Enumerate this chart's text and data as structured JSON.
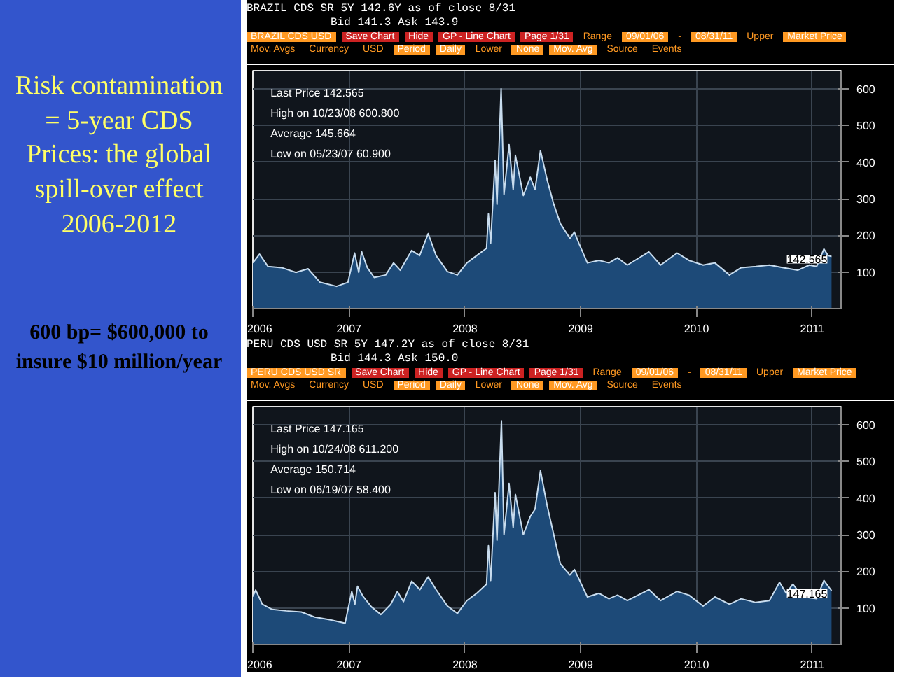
{
  "chart_data": [
    {
      "type": "other",
      "title": "Risk contamination = 5-year CDS Prices: the global spill-over effect 2006-2012",
      "annotations": [
        "600 bp= $600,000 to insure $10 million/year"
      ]
    },
    {
      "type": "area",
      "title": "BRAZIL CDS SR 5Y    142.6Y as of close  8/31",
      "subtitle": "Bid 141.3  Ask 143.9",
      "annotations": [
        "Last Price 142.565",
        "High on 10/23/08 600.800",
        "Average 145.664",
        "Low on 05/23/07 60.900",
        {
          "text": "142.565",
          "x": "2011-08-31",
          "y": 142.565
        },
        "BRAZIL CDS USD",
        "Save Chart",
        "Hide",
        "GP - Line Chart",
        "Page 1/31",
        "Range",
        "09/01/06",
        "-",
        "08/31/11",
        "Upper",
        "Market Price",
        "Mov. Avgs",
        "Currency",
        "USD",
        "Period",
        "Daily",
        "Lower",
        "None",
        "Mov. Avg",
        "Source",
        "Events"
      ],
      "x": [
        "2006-09-01",
        "2006-09-22",
        "2006-10-19",
        "2006-12-01",
        "2007-01-15",
        "2007-02-22",
        "2007-04-01",
        "2007-05-23",
        "2007-06-28",
        "2007-07-19",
        "2007-08-01",
        "2007-08-10",
        "2007-08-28",
        "2007-09-19",
        "2007-10-25",
        "2007-11-19",
        "2007-12-10",
        "2008-01-15",
        "2008-02-09",
        "2008-03-07",
        "2008-04-01",
        "2008-05-07",
        "2008-06-07",
        "2008-07-07",
        "2008-08-07",
        "2008-09-07",
        "2008-09-13",
        "2008-09-20",
        "2008-10-04",
        "2008-10-10",
        "2008-10-23",
        "2008-11-01",
        "2008-11-17",
        "2008-11-30",
        "2008-12-07",
        "2009-01-01",
        "2009-01-23",
        "2009-02-07",
        "2009-02-24",
        "2009-03-17",
        "2009-04-07",
        "2009-04-28",
        "2009-05-28",
        "2009-06-11",
        "2009-06-25",
        "2009-07-22",
        "2009-08-28",
        "2009-09-28",
        "2009-10-25",
        "2009-11-25",
        "2010-02-01",
        "2010-03-10",
        "2010-05-01",
        "2010-06-07",
        "2010-07-22",
        "2010-08-28",
        "2010-10-13",
        "2010-11-19",
        "2011-01-04",
        "2011-02-16",
        "2011-04-01",
        "2011-05-16",
        "2011-06-22",
        "2011-07-15",
        "2011-08-07",
        "2011-08-20",
        "2011-08-31"
      ],
      "series": [
        {
          "color": "#1d4a78",
          "values": [
            125,
            149,
            115,
            112,
            99,
            109,
            72,
            60.9,
            72,
            152,
            99,
            156,
            112,
            85,
            92,
            125,
            105,
            159,
            145,
            205,
            145,
            101,
            92,
            125,
            145,
            165,
            259,
            179,
            405,
            285,
            600.8,
            312,
            448,
            325,
            419,
            309,
            359,
            325,
            432,
            352,
            285,
            232,
            192,
            209,
            179,
            125,
            132,
            125,
            139,
            119,
            155,
            119,
            152,
            132,
            119,
            125,
            92,
            112,
            115,
            119,
            112,
            105,
            119,
            115,
            163,
            145,
            142.565
          ]
        }
      ],
      "xlim": [
        "2006-09-01",
        "2011-09-30"
      ],
      "xticks": [
        {
          "value": "2006-09-01",
          "label": "2006"
        },
        {
          "value": "2007-07-01",
          "label": "2007"
        },
        {
          "value": "2008-07-01",
          "label": "2008"
        },
        {
          "value": "2009-07-01",
          "label": "2009"
        },
        {
          "value": "2010-07-01",
          "label": "2010"
        },
        {
          "value": "2011-07-01",
          "label": "2011"
        }
      ],
      "ylim": [
        0,
        650
      ],
      "yticks": [
        100,
        200,
        300,
        400,
        500,
        600
      ],
      "grid": true
    },
    {
      "type": "area",
      "title": "PERU CDS USD SR 5Y    147.2Y as of close  8/31",
      "subtitle": "Bid 144.3  Ask 150.0",
      "annotations": [
        "Last Price 147.165",
        "High on 10/24/08 611.200",
        "Average 150.714",
        "Low on 06/19/07 58.400",
        {
          "text": "147.165",
          "x": "2011-08-31",
          "y": 147.165
        },
        "PERU CDS USD SR",
        "Save Chart",
        "Hide",
        "GP - Line Chart",
        "Page 1/31",
        "Range",
        "09/01/06",
        "-",
        "08/31/11",
        "Upper",
        "Market Price",
        "Mov. Avgs",
        "Currency",
        "USD",
        "Period",
        "Daily",
        "Lower",
        "None",
        "Mov. Avg",
        "Source",
        "Events"
      ],
      "x": [
        "2006-09-01",
        "2006-09-10",
        "2006-10-01",
        "2006-11-01",
        "2006-12-15",
        "2007-02-01",
        "2007-03-15",
        "2007-05-01",
        "2007-06-19",
        "2007-07-10",
        "2007-07-20",
        "2007-07-28",
        "2007-08-15",
        "2007-09-10",
        "2007-10-10",
        "2007-11-10",
        "2007-12-01",
        "2007-12-20",
        "2008-01-15",
        "2008-02-10",
        "2008-03-07",
        "2008-04-01",
        "2008-05-07",
        "2008-06-07",
        "2008-07-07",
        "2008-08-07",
        "2008-09-07",
        "2008-09-13",
        "2008-09-20",
        "2008-10-04",
        "2008-10-10",
        "2008-10-24",
        "2008-11-01",
        "2008-11-17",
        "2008-11-30",
        "2008-12-07",
        "2009-01-01",
        "2009-01-23",
        "2009-02-07",
        "2009-02-24",
        "2009-03-17",
        "2009-04-07",
        "2009-04-28",
        "2009-05-28",
        "2009-06-11",
        "2009-06-25",
        "2009-07-22",
        "2009-08-28",
        "2009-09-28",
        "2009-10-25",
        "2009-11-25",
        "2010-02-01",
        "2010-03-10",
        "2010-05-01",
        "2010-06-07",
        "2010-07-22",
        "2010-08-28",
        "2010-10-13",
        "2010-11-19",
        "2011-01-04",
        "2011-02-16",
        "2011-03-20",
        "2011-04-10",
        "2011-05-01",
        "2011-06-01",
        "2011-07-15",
        "2011-08-07",
        "2011-08-20",
        "2011-08-31"
      ],
      "series": [
        {
          "color": "#1d4a78",
          "values": [
            131,
            149,
            110,
            96,
            92,
            89,
            75,
            68,
            58.4,
            145,
            110,
            159,
            131,
            103,
            82,
            110,
            145,
            117,
            173,
            150,
            185,
            150,
            105,
            85,
            120,
            140,
            165,
            270,
            175,
            415,
            285,
            611.2,
            300,
            440,
            320,
            410,
            300,
            350,
            370,
            475,
            380,
            300,
            220,
            190,
            205,
            180,
            130,
            140,
            125,
            135,
            120,
            150,
            120,
            145,
            135,
            105,
            130,
            110,
            125,
            115,
            120,
            170,
            140,
            165,
            130,
            125,
            175,
            160,
            147.165
          ]
        }
      ],
      "xlim": [
        "2006-09-01",
        "2011-09-30"
      ],
      "xticks": [
        {
          "value": "2006-09-01",
          "label": "2006"
        },
        {
          "value": "2007-07-01",
          "label": "2007"
        },
        {
          "value": "2008-07-01",
          "label": "2008"
        },
        {
          "value": "2009-07-01",
          "label": "2009"
        },
        {
          "value": "2010-07-01",
          "label": "2010"
        },
        {
          "value": "2011-07-01",
          "label": "2011"
        }
      ],
      "ylim": [
        0,
        650
      ],
      "yticks": [
        100,
        200,
        300,
        400,
        500,
        600
      ],
      "grid": true
    }
  ]
}
